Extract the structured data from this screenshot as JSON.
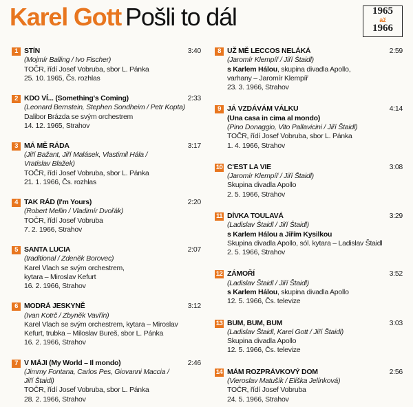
{
  "header": {
    "artist": "Karel Gott",
    "album": "Pošli to dál",
    "badge": {
      "from": "1965",
      "word": "až",
      "to": "1966"
    }
  },
  "columns": [
    {
      "tracks": [
        {
          "number": 1,
          "title": "STÍN",
          "time": "3:40",
          "lines": [
            {
              "text": "(Mojmír Balling / Ivo Fischer)",
              "style": "italic"
            },
            {
              "text": "TOČR, řídí Josef Vobruba, sbor L. Pánka",
              "style": "plain"
            },
            {
              "text": "25. 10. 1965, Čs. rozhlas",
              "style": "plain"
            }
          ]
        },
        {
          "number": 2,
          "title": "KDO VÍ... (Something's Coming)",
          "time": "2:33",
          "lines": [
            {
              "text": "(Leonard Bernstein, Stephen Sondheim / Petr Kopta)",
              "style": "italic"
            },
            {
              "text": "Dalibor Brázda se svým orchestrem",
              "style": "plain"
            },
            {
              "text": "14. 12. 1965, Strahov",
              "style": "plain"
            }
          ]
        },
        {
          "number": 3,
          "title": "MÁ MĚ RÁDA",
          "time": "3:17",
          "lines": [
            {
              "text": "(Jiří Bažant, Jiří Malásek, Vlastimil Hála /",
              "style": "italic"
            },
            {
              "text": "Vratislav Blažek)",
              "style": "italic"
            },
            {
              "text": "TOČR, řídí Josef Vobruba, sbor L. Pánka",
              "style": "plain"
            },
            {
              "text": "21. 1. 1966, Čs. rozhlas",
              "style": "plain"
            }
          ]
        },
        {
          "number": 4,
          "title": "TAK RÁD (I'm Yours)",
          "time": "2:20",
          "lines": [
            {
              "text": "(Robert Mellin / Vladimír Dvořák)",
              "style": "italic"
            },
            {
              "text": "TOČR, řídí Josef Vobruba",
              "style": "plain"
            },
            {
              "text": "7. 2. 1966, Strahov",
              "style": "plain"
            }
          ]
        },
        {
          "number": 5,
          "title": "SANTA LUCIA",
          "time": "2:07",
          "lines": [
            {
              "text": "(traditional / Zdeněk Borovec)",
              "style": "italic"
            },
            {
              "text": "Karel Vlach se svým orchestrem,",
              "style": "plain"
            },
            {
              "text": "kytara – Miroslav Kefurt",
              "style": "plain"
            },
            {
              "text": "16. 2. 1966, Strahov",
              "style": "plain"
            }
          ]
        },
        {
          "number": 6,
          "title": "MODRÁ JESKYNĚ",
          "time": "3:12",
          "lines": [
            {
              "text": "(Ivan Kotrč / Zbyněk Vavřín)",
              "style": "italic"
            },
            {
              "text": "Karel Vlach se svým orchestrem, kytara – Miroslav",
              "style": "plain"
            },
            {
              "text": "Kefurt, trubka – Miloslav Bureš, sbor L. Pánka",
              "style": "plain"
            },
            {
              "text": "16. 2. 1966, Strahov",
              "style": "plain"
            }
          ]
        },
        {
          "number": 7,
          "title": "V MÁJI (My World – Il mondo)",
          "time": "2:46",
          "lines": [
            {
              "text": "(Jimmy Fontana, Carlos Pes, Giovanni Maccia /",
              "style": "italic"
            },
            {
              "text": "Jiří Štaidl)",
              "style": "italic"
            },
            {
              "text": "TOČR, řídí Josef Vobruba, sbor L. Pánka",
              "style": "plain"
            },
            {
              "text": "28. 2. 1966, Strahov",
              "style": "plain"
            }
          ]
        }
      ]
    },
    {
      "tracks": [
        {
          "number": 8,
          "title": "UŽ MĚ LECCOS NELÁKÁ",
          "time": "2:59",
          "lines": [
            {
              "text": "(Jaromír Klempíř / Jiří Štaidl)",
              "style": "italic"
            },
            {
              "parts": [
                {
                  "text": "s Karlem Hálou",
                  "style": "bold"
                },
                {
                  "text": ", skupina divadla Apollo,",
                  "style": "plain"
                }
              ]
            },
            {
              "text": "varhany – Jaromír Klempíř",
              "style": "plain"
            },
            {
              "text": "23. 3. 1966, Strahov",
              "style": "plain"
            }
          ]
        },
        {
          "number": 9,
          "title": "JÁ VZDÁVÁM VÁLKU",
          "time": "4:14",
          "lines": [
            {
              "text": "(Una casa in cima al mondo)",
              "style": "bold"
            },
            {
              "text": "(Pino Donaggio, Vito Pallavicini / Jiří Štaidl)",
              "style": "italic"
            },
            {
              "text": "TOČR, řídí Josef Vobruba, sbor L. Pánka",
              "style": "plain"
            },
            {
              "text": "1. 4. 1966, Strahov",
              "style": "plain"
            }
          ]
        },
        {
          "number": 10,
          "title": "C'EST LA VIE",
          "time": "3:08",
          "lines": [
            {
              "text": "(Jaromír Klempíř / Jiří Štaidl)",
              "style": "italic"
            },
            {
              "text": "Skupina divadla Apollo",
              "style": "plain"
            },
            {
              "text": "2. 5. 1966, Strahov",
              "style": "plain"
            }
          ]
        },
        {
          "number": 11,
          "title": "DÍVKA TOULAVÁ",
          "time": "3:29",
          "lines": [
            {
              "text": "(Ladislav Štaidl / Jiří Štaidl)",
              "style": "italic"
            },
            {
              "text": "s Karlem Hálou a Jiřím Kysilkou",
              "style": "bold"
            },
            {
              "text": "Skupina divadla Apollo, sól. kytara – Ladislav Štaidl",
              "style": "plain"
            },
            {
              "text": "2. 5. 1966, Strahov",
              "style": "plain"
            }
          ]
        },
        {
          "number": 12,
          "title": "ZÁMOŘÍ",
          "time": "3:52",
          "lines": [
            {
              "text": "(Ladislav Štaidl / Jiří Štaidl)",
              "style": "italic"
            },
            {
              "parts": [
                {
                  "text": "s Karlem Hálou",
                  "style": "bold"
                },
                {
                  "text": ", skupina divadla Apollo",
                  "style": "plain"
                }
              ]
            },
            {
              "text": "12. 5. 1966, Čs. televize",
              "style": "plain"
            }
          ]
        },
        {
          "number": 13,
          "title": "BUM, BUM, BUM",
          "time": "3:03",
          "lines": [
            {
              "text": "(Ladislav Štaidl, Karel Gott / Jiří Štaidl)",
              "style": "italic"
            },
            {
              "text": "Skupina divadla Apollo",
              "style": "plain"
            },
            {
              "text": "12. 5. 1966, Čs. televize",
              "style": "plain"
            }
          ]
        },
        {
          "number": 14,
          "title": "MÁM ROZPRÁVKOVÝ DOM",
          "time": "2:56",
          "lines": [
            {
              "text": "(Vieroslav Matušík / Eliška Jelínková)",
              "style": "italic"
            },
            {
              "text": "TOČR, řídí Josef Vobruba",
              "style": "plain"
            },
            {
              "text": "24. 5. 1966, Strahov",
              "style": "plain"
            }
          ]
        }
      ]
    }
  ]
}
